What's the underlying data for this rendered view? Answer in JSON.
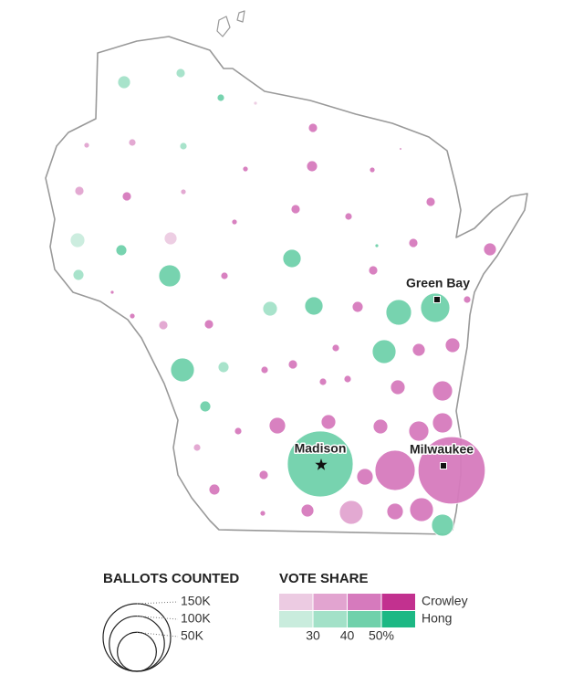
{
  "map": {
    "cities": [
      {
        "name": "Green Bay"
      },
      {
        "name": "Madison"
      },
      {
        "name": "Milwaukee"
      }
    ],
    "size_legend": {
      "title": "BALLOTS COUNTED",
      "ticks": [
        {
          "value": 150000,
          "label": "150K"
        },
        {
          "value": 100000,
          "label": "100K"
        },
        {
          "value": 50000,
          "label": "50K"
        }
      ]
    },
    "share_legend": {
      "title": "VOTE SHARE",
      "ticks": [
        30,
        40,
        {
          "value": 50,
          "label": "50%"
        }
      ]
    },
    "series": [
      {
        "name": "Crowley",
        "colors": [
          "#eccbe2",
          "#e2a4d0",
          "#d67abd",
          "#c2318f"
        ],
        "counties": [
          {
            "ballots": 440,
            "share": 25
          },
          {
            "ballots": 2740,
            "share": 45
          },
          {
            "ballots": 1000,
            "share": 35
          },
          {
            "ballots": 1750,
            "share": 35
          },
          {
            "ballots": 250,
            "share": 35
          },
          {
            "ballots": 3900,
            "share": 45
          },
          {
            "ballots": 1000,
            "share": 45
          },
          {
            "ballots": 1000,
            "share": 45
          },
          {
            "ballots": 2740,
            "share": 35
          },
          {
            "ballots": 2740,
            "share": 45
          },
          {
            "ballots": 1000,
            "share": 35
          },
          {
            "ballots": 2740,
            "share": 45
          },
          {
            "ballots": 2740,
            "share": 45
          },
          {
            "ballots": 1750,
            "share": 45
          },
          {
            "ballots": 1000,
            "share": 45
          },
          {
            "ballots": 5370,
            "share": 25
          },
          {
            "ballots": 2740,
            "share": 45
          },
          {
            "ballots": 5370,
            "share": 45
          },
          {
            "ballots": 2740,
            "share": 45
          },
          {
            "ballots": 1750,
            "share": 45
          },
          {
            "ballots": 440,
            "share": 45
          },
          {
            "ballots": 1750,
            "share": 45
          },
          {
            "ballots": 3900,
            "share": 45
          },
          {
            "ballots": 1000,
            "share": 45
          },
          {
            "ballots": 2740,
            "share": 35
          },
          {
            "ballots": 2740,
            "share": 45
          },
          {
            "ballots": 1750,
            "share": 45
          },
          {
            "ballots": 5370,
            "share": 45
          },
          {
            "ballots": 7000,
            "share": 45
          },
          {
            "ballots": 1750,
            "share": 45
          },
          {
            "ballots": 2740,
            "share": 45
          },
          {
            "ballots": 1750,
            "share": 45
          },
          {
            "ballots": 1750,
            "share": 45
          },
          {
            "ballots": 7000,
            "share": 45
          },
          {
            "ballots": 13260,
            "share": 45
          },
          {
            "ballots": 8900,
            "share": 45
          },
          {
            "ballots": 7000,
            "share": 45
          },
          {
            "ballots": 7000,
            "share": 45
          },
          {
            "ballots": 13260,
            "share": 45
          },
          {
            "ballots": 13260,
            "share": 45
          },
          {
            "ballots": 1750,
            "share": 45
          },
          {
            "ballots": 1750,
            "share": 35
          },
          {
            "ballots": 53050,
            "share": 45
          },
          {
            "ballots": 148000,
            "share": 45
          },
          {
            "ballots": 8900,
            "share": 45
          },
          {
            "ballots": 2740,
            "share": 45
          },
          {
            "ballots": 3900,
            "share": 45
          },
          {
            "ballots": 5370,
            "share": 45
          },
          {
            "ballots": 18520,
            "share": 35
          },
          {
            "ballots": 8900,
            "share": 45
          },
          {
            "ballots": 18520,
            "share": 45
          },
          {
            "ballots": 1000,
            "share": 45
          }
        ]
      },
      {
        "name": "Hong",
        "colors": [
          "#c9ecdd",
          "#a3e1c8",
          "#70d1ab",
          "#1db884"
        ],
        "counties": [
          {
            "ballots": 5370,
            "share": 35
          },
          {
            "ballots": 2740,
            "share": 35
          },
          {
            "ballots": 1750,
            "share": 45
          },
          {
            "ballots": 1750,
            "share": 35
          },
          {
            "ballots": 7000,
            "share": 25
          },
          {
            "ballots": 3900,
            "share": 45
          },
          {
            "ballots": 440,
            "share": 45
          },
          {
            "ballots": 11000,
            "share": 45
          },
          {
            "ballots": 3900,
            "share": 35
          },
          {
            "ballots": 15780,
            "share": 45
          },
          {
            "ballots": 7000,
            "share": 35
          },
          {
            "ballots": 11000,
            "share": 45
          },
          {
            "ballots": 21480,
            "share": 45
          },
          {
            "ballots": 28060,
            "share": 45
          },
          {
            "ballots": 18520,
            "share": 45
          },
          {
            "ballots": 18520,
            "share": 45
          },
          {
            "ballots": 3900,
            "share": 35
          },
          {
            "ballots": 3900,
            "share": 45
          },
          {
            "ballots": 142000,
            "share": 45
          },
          {
            "ballots": 15780,
            "share": 45
          }
        ]
      }
    ]
  }
}
